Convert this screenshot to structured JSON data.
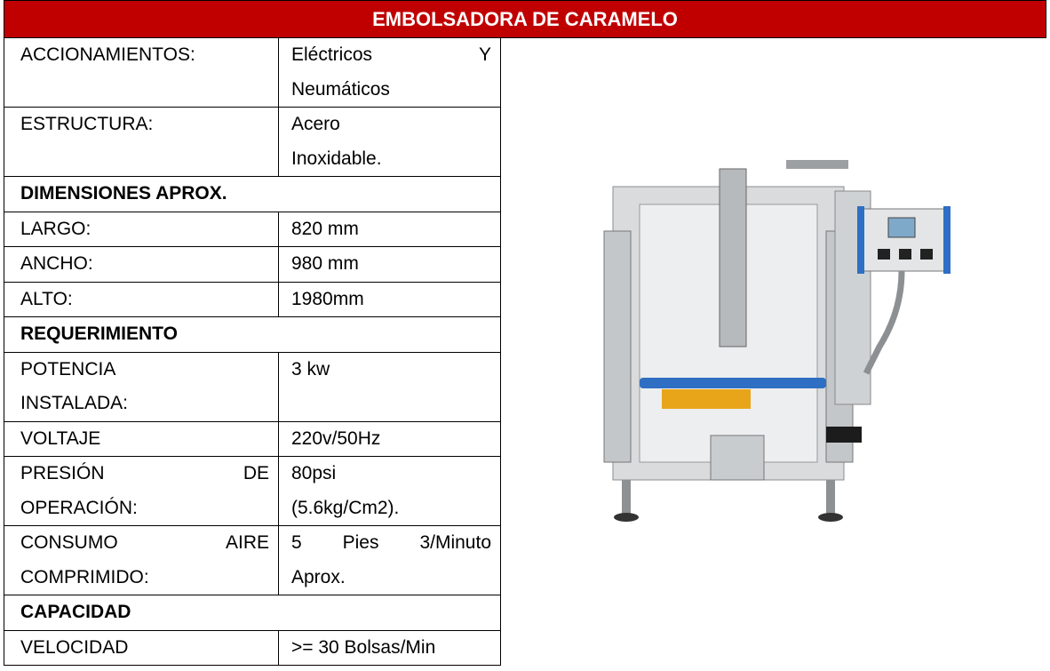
{
  "title": "EMBOLSADORA DE CARAMELO",
  "table": {
    "rows": [
      {
        "cells": [
          [
            "ACCIONAMIENTOS:"
          ],
          [
            "Eléctricos Y",
            "Neumáticos"
          ]
        ]
      },
      {
        "cells": [
          [
            "ESTRUCTURA:"
          ],
          [
            "Acero",
            "Inoxidable."
          ]
        ]
      },
      {
        "heading": "DIMENSIONES APROX."
      },
      {
        "cells": [
          [
            "LARGO:"
          ],
          [
            "820 mm"
          ]
        ]
      },
      {
        "cells": [
          [
            "ANCHO:"
          ],
          [
            "980 mm"
          ]
        ]
      },
      {
        "cells": [
          [
            "ALTO:"
          ],
          [
            "1980mm"
          ]
        ]
      },
      {
        "heading": "REQUERIMIENTO"
      },
      {
        "cells": [
          [
            "POTENCIA",
            "INSTALADA:"
          ],
          [
            "3 kw"
          ]
        ]
      },
      {
        "cells": [
          [
            "VOLTAJE"
          ],
          [
            "220v/50Hz"
          ]
        ]
      },
      {
        "cells": [
          [
            "PRESIÓN DE",
            "OPERACIÓN:"
          ],
          [
            "80psi",
            "(5.6kg/Cm2)."
          ]
        ]
      },
      {
        "cells": [
          [
            "CONSUMO AIRE",
            "COMPRIMIDO:"
          ],
          [
            "5 Pies 3/Minuto",
            "Aprox."
          ]
        ]
      },
      {
        "heading": "CAPACIDAD"
      },
      {
        "cells": [
          [
            "VELOCIDAD"
          ],
          [
            ">= 30 Bolsas/Min"
          ]
        ]
      }
    ]
  }
}
